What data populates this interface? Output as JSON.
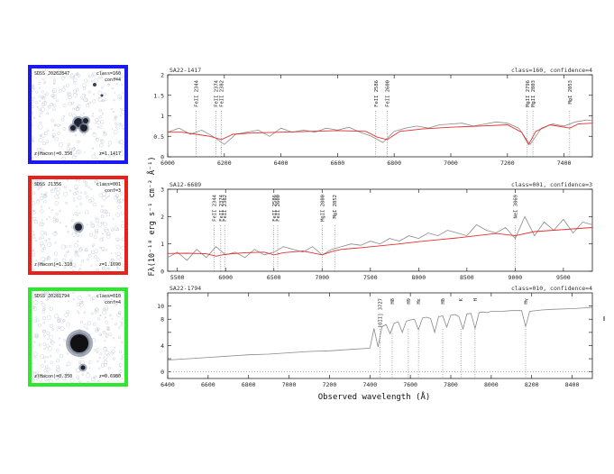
{
  "colors": {
    "blue_frame": "#1a1af0",
    "red_frame": "#e8211a",
    "green_frame": "#2ee82e",
    "observed": "#8a8a8a",
    "model": "#e03030",
    "axis": "#222222"
  },
  "thumbnails": [
    {
      "id": "SDSS J0262847",
      "class": "class=160",
      "conf": "conf=4",
      "z": "z(Hacon)=0.350",
      "mag": "z=1.1417"
    },
    {
      "id": "SDSS J1356",
      "class": "class=001",
      "conf": "conf=3",
      "z": "z(Hacon)=1.310",
      "mag": "z=1.1690"
    },
    {
      "id": "SDSS J0281794",
      "class": "class=010",
      "conf": "conf=4",
      "z": "z(Hacon)=0.350",
      "mag": "z=0.6980"
    }
  ],
  "y_axis_label": "Fλ(10⁻¹⁸ erg s⁻¹ cm⁻² Å⁻¹)",
  "x_axis_label": "Observed wavelength (Å)",
  "chart_data": [
    {
      "type": "line",
      "panel_id": "SA22-1417",
      "meta": "class=160, confidence=4",
      "xlim": [
        6000,
        7500
      ],
      "ylim": [
        0,
        2
      ],
      "x_ticks": [
        6000,
        6200,
        6400,
        6600,
        6800,
        7000,
        7200,
        7400
      ],
      "y_ticks": [
        0,
        0.5,
        1,
        1.5,
        2
      ],
      "y_tick_labels": [
        "0",
        "0.5",
        "1",
        "1.5",
        "2"
      ],
      "lines": [
        {
          "label": "FeII 2344",
          "x": 6100
        },
        {
          "label": "FeII 2374",
          "x": 6170
        },
        {
          "label": "FeII 2382",
          "x": 6190
        },
        {
          "label": "FeII 2586",
          "x": 6735
        },
        {
          "label": "FeII 2600",
          "x": 6775
        },
        {
          "label": "MgII 2796",
          "x": 7270
        },
        {
          "label": "MgII 2803",
          "x": 7290
        },
        {
          "label": "MgI 2853",
          "x": 7420
        }
      ],
      "series": [
        {
          "name": "observed",
          "x": [
            6000,
            6040,
            6080,
            6120,
            6160,
            6200,
            6240,
            6280,
            6320,
            6360,
            6400,
            6440,
            6480,
            6520,
            6560,
            6600,
            6640,
            6680,
            6720,
            6760,
            6800,
            6840,
            6880,
            6920,
            6960,
            7000,
            7040,
            7080,
            7120,
            7160,
            7200,
            7240,
            7280,
            7320,
            7360,
            7400,
            7440,
            7480,
            7500
          ],
          "y": [
            0.6,
            0.7,
            0.55,
            0.65,
            0.5,
            0.3,
            0.55,
            0.6,
            0.65,
            0.5,
            0.7,
            0.6,
            0.65,
            0.6,
            0.7,
            0.65,
            0.72,
            0.6,
            0.5,
            0.35,
            0.62,
            0.7,
            0.75,
            0.7,
            0.78,
            0.8,
            0.82,
            0.75,
            0.8,
            0.85,
            0.82,
            0.7,
            0.3,
            0.7,
            0.8,
            0.75,
            0.85,
            0.9,
            0.88
          ]
        },
        {
          "name": "model",
          "x": [
            6000,
            6050,
            6100,
            6150,
            6190,
            6230,
            6300,
            6400,
            6500,
            6600,
            6700,
            6740,
            6775,
            6820,
            6900,
            7000,
            7100,
            7200,
            7250,
            7275,
            7300,
            7350,
            7420,
            7450,
            7500
          ],
          "y": [
            0.6,
            0.6,
            0.55,
            0.5,
            0.42,
            0.55,
            0.58,
            0.6,
            0.62,
            0.64,
            0.62,
            0.48,
            0.42,
            0.62,
            0.68,
            0.72,
            0.75,
            0.78,
            0.6,
            0.3,
            0.62,
            0.78,
            0.7,
            0.8,
            0.82
          ]
        }
      ]
    },
    {
      "type": "line",
      "panel_id": "SA12-6689",
      "meta": "class=001, confidence=3",
      "xlim": [
        5400,
        9800
      ],
      "ylim": [
        0,
        3
      ],
      "x_ticks": [
        5500,
        6000,
        6500,
        7000,
        7500,
        8000,
        8500,
        9000,
        9500
      ],
      "x_tick_labels": [
        "5500",
        "6000",
        "6500",
        "7000",
        "7500",
        "8000",
        "8500",
        "9000",
        "9500"
      ],
      "y_ticks": [
        0,
        1,
        2,
        3
      ],
      "y_tick_labels": [
        "0",
        "1",
        "2",
        "3"
      ],
      "lines": [
        {
          "label": "FeII 2344",
          "x": 5880
        },
        {
          "label": "FeII 2374",
          "x": 5950
        },
        {
          "label": "FeII 2382",
          "x": 5990
        },
        {
          "label": "FeII 2586",
          "x": 6500
        },
        {
          "label": "FeII 2600",
          "x": 6540
        },
        {
          "label": "MgII 2800",
          "x": 7000
        },
        {
          "label": "MgI 2852",
          "x": 7130
        },
        {
          "label": "NeI 3869",
          "x": 9000
        }
      ],
      "series": [
        {
          "name": "observed",
          "x": [
            5400,
            5500,
            5600,
            5700,
            5800,
            5900,
            6000,
            6100,
            6200,
            6300,
            6400,
            6500,
            6600,
            6700,
            6800,
            6900,
            7000,
            7100,
            7200,
            7300,
            7400,
            7500,
            7600,
            7700,
            7800,
            7900,
            8000,
            8100,
            8200,
            8300,
            8400,
            8500,
            8600,
            8700,
            8800,
            8900,
            9000,
            9100,
            9200,
            9300,
            9400,
            9500,
            9600,
            9700,
            9800
          ],
          "y": [
            0.5,
            0.7,
            0.4,
            0.8,
            0.5,
            0.9,
            0.6,
            0.7,
            0.5,
            0.8,
            0.6,
            0.7,
            0.9,
            0.8,
            0.7,
            0.9,
            0.6,
            0.8,
            0.9,
            1.0,
            0.95,
            1.1,
            1.0,
            1.2,
            1.1,
            1.3,
            1.2,
            1.4,
            1.3,
            1.5,
            1.4,
            1.3,
            1.7,
            1.5,
            1.4,
            1.6,
            1.2,
            2.0,
            1.3,
            1.8,
            1.5,
            1.9,
            1.4,
            1.8,
            1.7
          ]
        },
        {
          "name": "model",
          "x": [
            5400,
            5600,
            5800,
            5900,
            6000,
            6200,
            6400,
            6500,
            6600,
            6800,
            7000,
            7100,
            7200,
            7400,
            7600,
            7800,
            8000,
            8200,
            8400,
            8600,
            8800,
            9000,
            9200,
            9400,
            9600,
            9800
          ],
          "y": [
            0.65,
            0.66,
            0.64,
            0.55,
            0.62,
            0.68,
            0.7,
            0.6,
            0.68,
            0.74,
            0.6,
            0.72,
            0.8,
            0.86,
            0.93,
            1.0,
            1.08,
            1.15,
            1.22,
            1.3,
            1.38,
            1.3,
            1.45,
            1.5,
            1.55,
            1.6
          ]
        }
      ]
    },
    {
      "type": "line",
      "panel_id": "SA22-1794",
      "meta": "class=010, confidence=4",
      "xlim": [
        6400,
        8500
      ],
      "ylim": [
        -1,
        12
      ],
      "x_ticks": [
        6400,
        6600,
        6800,
        7000,
        7200,
        7400,
        7600,
        7800,
        8000,
        8200,
        8400
      ],
      "x_tick_labels": [
        "6400",
        "6600",
        "6800",
        "7000",
        "7200",
        "7400",
        "7600",
        "7800",
        "8000",
        "8200",
        "8400"
      ],
      "y_ticks": [
        0,
        2,
        4,
        6,
        8,
        10
      ],
      "y_tick_labels": [
        "0",
        "",
        "4",
        "",
        "8",
        "10"
      ],
      "lines": [
        {
          "label": "[OII] 3727",
          "x": 7450
        },
        {
          "label": "H8",
          "x": 7510
        },
        {
          "label": "H9",
          "x": 7590
        },
        {
          "label": "Hε",
          "x": 7640
        },
        {
          "label": "Hδ",
          "x": 7760
        },
        {
          "label": "K",
          "x": 7850
        },
        {
          "label": "H",
          "x": 7920
        },
        {
          "label": "Hγ",
          "x": 8170
        }
      ],
      "series": [
        {
          "name": "observed",
          "x": [
            6400,
            6500,
            6600,
            6700,
            6800,
            6900,
            7000,
            7100,
            7200,
            7300,
            7400,
            7420,
            7440,
            7460,
            7480,
            7500,
            7520,
            7540,
            7560,
            7580,
            7600,
            7620,
            7640,
            7660,
            7680,
            7700,
            7720,
            7740,
            7760,
            7780,
            7800,
            7820,
            7840,
            7860,
            7880,
            7900,
            7920,
            7940,
            7960,
            7980,
            8000,
            8050,
            8100,
            8150,
            8170,
            8190,
            8250,
            8300,
            8400,
            8500
          ],
          "y": [
            1.8,
            2.0,
            2.2,
            2.4,
            2.6,
            2.7,
            2.9,
            3.1,
            3.2,
            3.4,
            3.6,
            6.6,
            3.8,
            6.9,
            7.2,
            5.8,
            7.4,
            7.6,
            6.0,
            7.7,
            7.9,
            8.0,
            6.4,
            8.2,
            8.3,
            8.1,
            6.0,
            8.4,
            8.5,
            6.8,
            8.6,
            8.7,
            8.4,
            6.5,
            8.8,
            8.9,
            6.6,
            9.0,
            9.1,
            9.0,
            9.2,
            9.2,
            9.3,
            9.3,
            6.9,
            9.2,
            9.4,
            9.5,
            9.6,
            9.8
          ]
        }
      ]
    }
  ]
}
